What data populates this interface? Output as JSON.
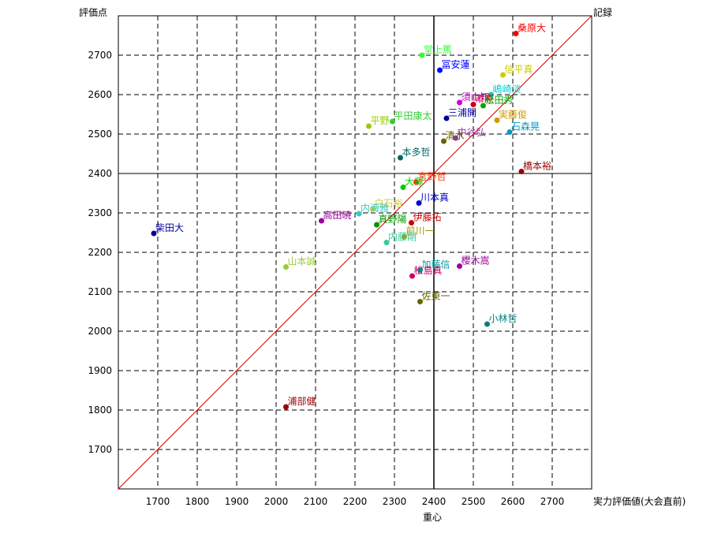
{
  "chart_data": {
    "type": "scatter",
    "xlabel": "実力評価値(大会直前)",
    "ylabel": "評価点",
    "xlabel_secondary": "重心",
    "diagonal_label": "記録",
    "xlim": [
      1600,
      2800
    ],
    "ylim": [
      1600,
      2800
    ],
    "x_ticks": [
      1700,
      1800,
      1900,
      2000,
      2100,
      2200,
      2300,
      2400,
      2500,
      2600,
      2700
    ],
    "y_ticks": [
      1700,
      1800,
      1900,
      2000,
      2100,
      2200,
      2300,
      2400,
      2500,
      2600,
      2700
    ],
    "grid": true,
    "reference_lines": {
      "diagonal": true,
      "x": 2400,
      "y": 2400
    },
    "points": [
      {
        "label": "桑原大",
        "x": 2608,
        "y": 2755,
        "color": "#ff0000"
      },
      {
        "label": "堂上篤",
        "x": 2370,
        "y": 2700,
        "color": "#33ff33"
      },
      {
        "label": "冨安蓮",
        "x": 2415,
        "y": 2662,
        "color": "#0000ff"
      },
      {
        "label": "信平真",
        "x": 2575,
        "y": 2650,
        "color": "#cccc00"
      },
      {
        "label": "嶋崎淡",
        "x": 2545,
        "y": 2600,
        "color": "#00cccc"
      },
      {
        "label": "須山知",
        "x": 2465,
        "y": 2580,
        "color": "#cc00cc"
      },
      {
        "label": "市原",
        "x": 2500,
        "y": 2575,
        "color": "#cc0000"
      },
      {
        "label": "松田秀",
        "x": 2525,
        "y": 2572,
        "color": "#00aa00"
      },
      {
        "label": "三浦開",
        "x": 2432,
        "y": 2540,
        "color": "#000099"
      },
      {
        "label": "実藤俊",
        "x": 2560,
        "y": 2535,
        "color": "#cc9900"
      },
      {
        "label": "平田康太",
        "x": 2295,
        "y": 2532,
        "color": "#33cc33"
      },
      {
        "label": "平野",
        "x": 2235,
        "y": 2520,
        "color": "#99cc00"
      },
      {
        "label": "石森晃",
        "x": 2592,
        "y": 2505,
        "color": "#0099cc"
      },
      {
        "label": "中谷弘",
        "x": 2455,
        "y": 2490,
        "color": "#993399"
      },
      {
        "label": "清水",
        "x": 2425,
        "y": 2482,
        "color": "#666600"
      },
      {
        "label": "本多哲",
        "x": 2315,
        "y": 2440,
        "color": "#006666"
      },
      {
        "label": "橋本裕",
        "x": 2622,
        "y": 2405,
        "color": "#990000"
      },
      {
        "label": "宮野哲",
        "x": 2355,
        "y": 2378,
        "color": "#ff3300"
      },
      {
        "label": "大塚",
        "x": 2322,
        "y": 2365,
        "color": "#00cc00"
      },
      {
        "label": "川本真",
        "x": 2362,
        "y": 2325,
        "color": "#0000cc"
      },
      {
        "label": "白石裕",
        "x": 2245,
        "y": 2310,
        "color": "#cccc33"
      },
      {
        "label": "内海雅",
        "x": 2210,
        "y": 2298,
        "color": "#33cccc"
      },
      {
        "label": "高田暁",
        "x": 2115,
        "y": 2280,
        "color": "#990099"
      },
      {
        "label": "伊藤拓",
        "x": 2343,
        "y": 2275,
        "color": "#cc0000"
      },
      {
        "label": "真野陽",
        "x": 2255,
        "y": 2270,
        "color": "#009900"
      },
      {
        "label": "柴田大",
        "x": 1690,
        "y": 2248,
        "color": "#000099"
      },
      {
        "label": "前川一",
        "x": 2325,
        "y": 2240,
        "color": "#999900"
      },
      {
        "label": "内藤剛",
        "x": 2280,
        "y": 2225,
        "color": "#33cc99"
      },
      {
        "label": "山本誠",
        "x": 2025,
        "y": 2163,
        "color": "#99cc33"
      },
      {
        "label": "櫻木嵩",
        "x": 2465,
        "y": 2165,
        "color": "#990099"
      },
      {
        "label": "加藤信",
        "x": 2365,
        "y": 2155,
        "color": "#009999"
      },
      {
        "label": "松島真",
        "x": 2345,
        "y": 2140,
        "color": "#cc0066"
      },
      {
        "label": "佐東一",
        "x": 2365,
        "y": 2075,
        "color": "#666600"
      },
      {
        "label": "小林哲",
        "x": 2535,
        "y": 2018,
        "color": "#008080"
      },
      {
        "label": "浦部健",
        "x": 2025,
        "y": 1808,
        "color": "#990000"
      }
    ]
  }
}
